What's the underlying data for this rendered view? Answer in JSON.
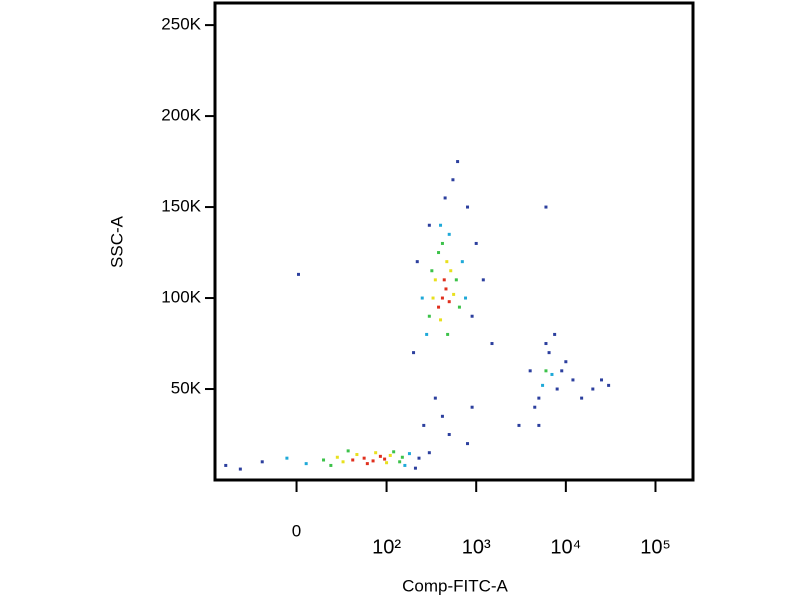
{
  "chart_data": {
    "type": "scatter",
    "x_label": "Comp-FITC-A",
    "y_label": "SSC-A",
    "xscale": "biexponential",
    "xlim": [
      -80,
      262144
    ],
    "ylim": [
      0,
      262144
    ],
    "xticks": [
      0,
      {
        "value": 100,
        "label": "10²"
      },
      {
        "value": 1000,
        "label": "10³"
      },
      {
        "value": 10000,
        "label": "10⁴"
      },
      {
        "value": 100000,
        "label": "10⁵"
      }
    ],
    "yticks": [
      {
        "value": 50000,
        "label": "50K"
      },
      {
        "value": 100000,
        "label": "100K"
      },
      {
        "value": 150000,
        "label": "150K"
      },
      {
        "value": 200000,
        "label": "200K"
      },
      {
        "value": 250000,
        "label": "250K"
      }
    ],
    "series": [
      {
        "color": "#2c3f9e",
        "x": [
          -40,
          -20,
          210,
          230,
          -60,
          300,
          260,
          350,
          420,
          500,
          800,
          900,
          200,
          220,
          300,
          450,
          550,
          620,
          800,
          1000,
          1200,
          900,
          1500,
          4000,
          5000,
          6500,
          8000,
          9000,
          12000,
          15000,
          20000,
          25000,
          30000,
          3000,
          5000,
          6000,
          7500,
          4500,
          10000,
          6000,
          1
        ],
        "y": [
          6000,
          10000,
          6500,
          12000,
          8000,
          15000,
          30000,
          45000,
          35000,
          25000,
          20000,
          40000,
          70000,
          120000,
          140000,
          155000,
          165000,
          175000,
          150000,
          130000,
          110000,
          90000,
          75000,
          60000,
          45000,
          70000,
          50000,
          60000,
          55000,
          45000,
          50000,
          55000,
          52000,
          30000,
          30000,
          75000,
          80000,
          40000,
          65000,
          150000,
          113000
        ]
      },
      {
        "color": "#1fa9d8",
        "x": [
          5,
          160,
          -5,
          180,
          250,
          700,
          500,
          280,
          760,
          400,
          5500,
          7000
        ],
        "y": [
          9000,
          8000,
          12000,
          14500,
          100000,
          120000,
          135000,
          80000,
          100000,
          140000,
          52000,
          58000
        ]
      },
      {
        "color": "#3cc24a",
        "x": [
          20,
          120,
          140,
          35,
          15,
          150,
          300,
          600,
          380,
          320,
          650,
          480,
          420,
          6000
        ],
        "y": [
          8000,
          15500,
          10000,
          16000,
          11000,
          12500,
          90000,
          110000,
          125000,
          115000,
          95000,
          80000,
          130000,
          60000
        ]
      },
      {
        "color": "#e8e01e",
        "x": [
          30,
          45,
          100,
          110,
          75,
          25,
          350,
          520,
          400,
          560,
          330,
          470
        ],
        "y": [
          10000,
          14000,
          9500,
          13500,
          15000,
          12500,
          110000,
          115000,
          88000,
          102000,
          100000,
          120000
        ]
      },
      {
        "color": "#e0301e",
        "x": [
          40,
          55,
          70,
          85,
          60,
          95,
          420,
          460,
          500,
          440,
          380
        ],
        "y": [
          11000,
          12000,
          10500,
          13000,
          9000,
          11500,
          100000,
          105000,
          98000,
          110000,
          95000
        ]
      }
    ]
  }
}
